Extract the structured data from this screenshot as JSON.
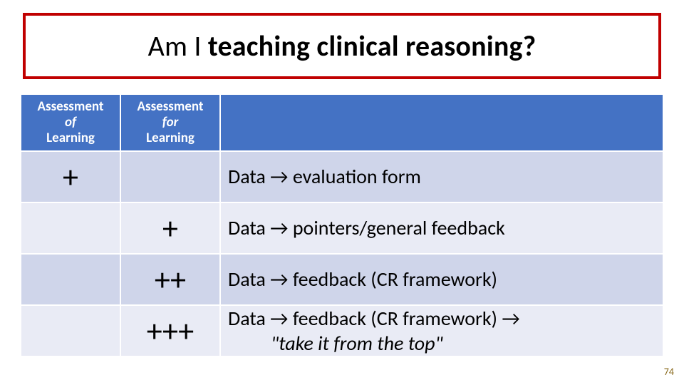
{
  "title": {
    "plain": "Am I ",
    "bold": "teaching clinical reasoning?"
  },
  "headers": {
    "col1_line1": "Assessment",
    "col1_line2_italic": "of",
    "col1_line3": "Learning",
    "col2_line1": "Assessment",
    "col2_line2_italic": "for",
    "col2_line3": "Learning"
  },
  "rows": [
    {
      "of": "+",
      "for": "",
      "desc_html": "Data → evaluation form"
    },
    {
      "of": "",
      "for": "+",
      "desc_html": "Data → pointers/general feedback"
    },
    {
      "of": "",
      "for": "++",
      "desc_html": "Data → feedback (CR framework)"
    },
    {
      "of": "",
      "for": "+++",
      "desc_line1": "Data → feedback (CR framework) →",
      "desc_line2_italic": "\"take it from the top\""
    }
  ],
  "arrow_glyph": "→",
  "page_number": "74",
  "colors": {
    "title_border": "#c00000",
    "header_bg": "#4472c4",
    "row_light": "#e9ebf5",
    "row_band": "#cfd5ea"
  }
}
